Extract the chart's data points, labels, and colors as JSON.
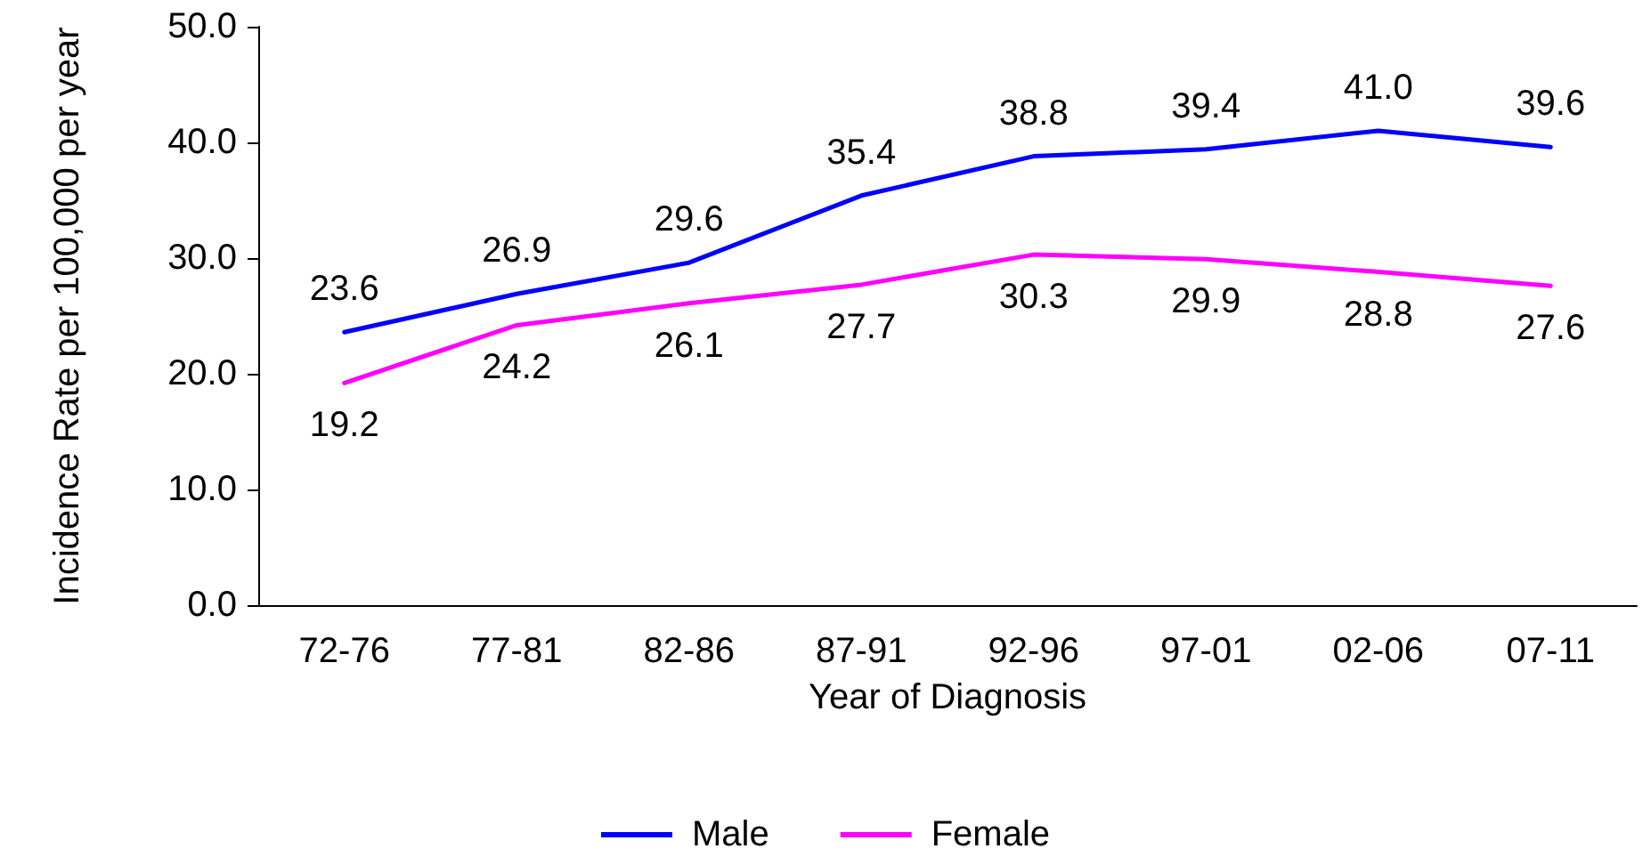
{
  "chart_data": {
    "type": "line",
    "xlabel": "Year of Diagnosis",
    "ylabel": "Incidence Rate per 100,000 per year",
    "categories": [
      "72-76",
      "77-81",
      "82-86",
      "87-91",
      "92-96",
      "97-01",
      "02-06",
      "07-11"
    ],
    "series": [
      {
        "name": "Male",
        "color": "#0000ff",
        "values": [
          23.6,
          26.9,
          29.6,
          35.4,
          38.8,
          39.4,
          41.0,
          39.6
        ],
        "value_labels": [
          "23.6",
          "26.9",
          "29.6",
          "35.4",
          "38.8",
          "39.4",
          "41.0",
          "39.6"
        ]
      },
      {
        "name": "Female",
        "color": "#ff00ff",
        "values": [
          19.2,
          24.2,
          26.1,
          27.7,
          30.3,
          29.9,
          28.8,
          27.6
        ],
        "value_labels": [
          "19.2",
          "24.2",
          "26.1",
          "27.7",
          "30.3",
          "29.9",
          "28.8",
          "27.6"
        ]
      }
    ],
    "ylim": [
      0,
      50
    ],
    "yticks": [
      {
        "value": 0,
        "label": "0.0"
      },
      {
        "value": 10,
        "label": "10.0"
      },
      {
        "value": 20,
        "label": "20.0"
      },
      {
        "value": 30,
        "label": "30.0"
      },
      {
        "value": 40,
        "label": "40.0"
      },
      {
        "value": 50,
        "label": "50.0"
      }
    ],
    "grid": false,
    "legend": "bottom",
    "marker": "none",
    "line_style": "solid"
  }
}
